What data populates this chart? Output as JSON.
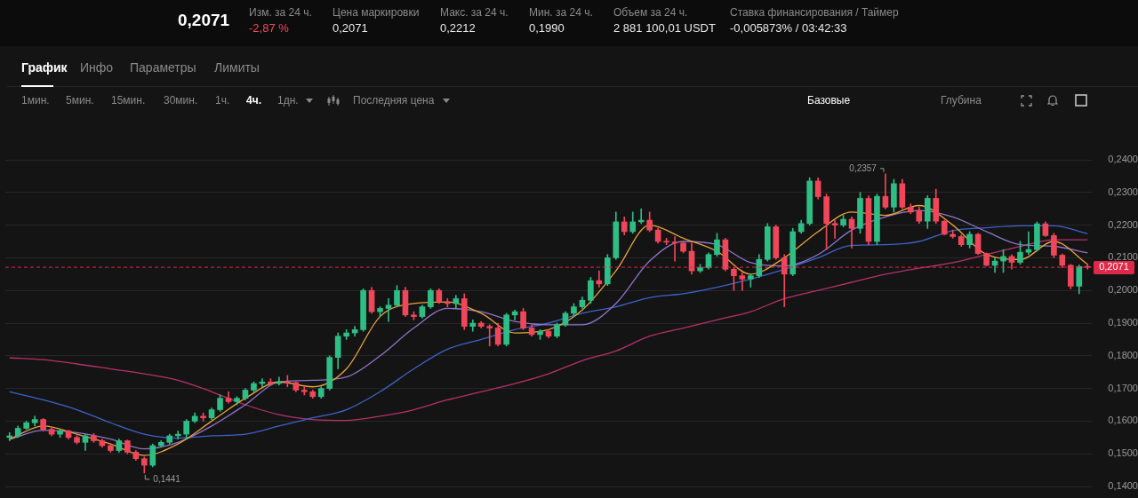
{
  "chart_data": {
    "type": "candlestick",
    "categories": [
      null,
      null,
      null,
      null,
      null,
      null,
      null,
      null,
      null,
      null,
      null,
      null,
      null,
      null,
      null,
      null,
      null,
      null,
      null,
      null,
      null,
      null,
      null,
      null,
      null,
      null,
      null,
      null,
      null,
      null,
      null,
      null,
      null,
      null,
      null,
      null,
      null,
      null,
      null,
      null,
      null,
      null,
      null,
      null,
      null,
      null,
      null,
      null,
      null,
      null,
      null,
      null,
      null,
      null,
      null,
      null,
      null,
      null,
      null,
      null,
      null,
      null,
      null,
      null,
      null,
      null,
      null,
      null,
      null,
      null,
      null,
      null,
      null,
      null,
      null,
      null,
      null,
      null,
      null,
      null,
      null,
      null,
      null,
      null,
      null,
      null,
      null,
      null,
      null,
      null,
      null,
      null,
      null,
      null,
      null,
      null,
      null,
      null,
      null,
      null,
      null,
      null,
      null,
      null,
      null,
      null,
      null,
      null,
      null,
      null,
      null,
      null,
      null,
      null,
      null,
      null,
      null,
      null,
      null,
      null,
      null,
      null,
      null,
      null,
      null,
      null,
      null,
      null,
      null
    ],
    "ohlc": [
      [
        0.155,
        0.1565,
        0.154,
        0.1555
      ],
      [
        0.1555,
        0.1585,
        0.155,
        0.1578
      ],
      [
        0.1578,
        0.16,
        0.1575,
        0.1595
      ],
      [
        0.1595,
        0.1615,
        0.1585,
        0.1605
      ],
      [
        0.1605,
        0.1608,
        0.157,
        0.1575
      ],
      [
        0.1575,
        0.158,
        0.1555,
        0.156
      ],
      [
        0.156,
        0.1575,
        0.155,
        0.157
      ],
      [
        0.157,
        0.1572,
        0.1545,
        0.155
      ],
      [
        0.155,
        0.1555,
        0.153,
        0.1535
      ],
      [
        0.1535,
        0.156,
        0.151,
        0.1555
      ],
      [
        0.1555,
        0.1562,
        0.1535,
        0.154
      ],
      [
        0.154,
        0.1545,
        0.152,
        0.1525
      ],
      [
        0.1525,
        0.153,
        0.1505,
        0.151
      ],
      [
        0.151,
        0.1545,
        0.1505,
        0.154
      ],
      [
        0.154,
        0.1542,
        0.15,
        0.1505
      ],
      [
        0.1505,
        0.151,
        0.148,
        0.1485
      ],
      [
        0.1485,
        0.149,
        0.1441,
        0.1465
      ],
      [
        0.1465,
        0.153,
        0.146,
        0.1525
      ],
      [
        0.1525,
        0.154,
        0.152,
        0.1535
      ],
      [
        0.1535,
        0.156,
        0.153,
        0.1555
      ],
      [
        0.1555,
        0.157,
        0.1545,
        0.156
      ],
      [
        0.156,
        0.1605,
        0.1545,
        0.16
      ],
      [
        0.16,
        0.1625,
        0.1595,
        0.1615
      ],
      [
        0.1615,
        0.1625,
        0.16,
        0.161
      ],
      [
        0.161,
        0.164,
        0.1605,
        0.1635
      ],
      [
        0.1635,
        0.168,
        0.163,
        0.167
      ],
      [
        0.167,
        0.169,
        0.1655,
        0.166
      ],
      [
        0.166,
        0.1675,
        0.165,
        0.167
      ],
      [
        0.167,
        0.17,
        0.1665,
        0.1695
      ],
      [
        0.1695,
        0.172,
        0.169,
        0.1715
      ],
      [
        0.1715,
        0.173,
        0.1705,
        0.172
      ],
      [
        0.172,
        0.173,
        0.171,
        0.1715
      ],
      [
        0.1715,
        0.1735,
        0.171,
        0.172
      ],
      [
        0.172,
        0.174,
        0.1705,
        0.1718
      ],
      [
        0.1718,
        0.172,
        0.169,
        0.1695
      ],
      [
        0.1695,
        0.1705,
        0.168,
        0.169
      ],
      [
        0.169,
        0.1695,
        0.167,
        0.1675
      ],
      [
        0.1675,
        0.1705,
        0.167,
        0.17
      ],
      [
        0.17,
        0.18,
        0.1695,
        0.1795
      ],
      [
        0.1795,
        0.187,
        0.176,
        0.186
      ],
      [
        0.186,
        0.188,
        0.185,
        0.187
      ],
      [
        0.187,
        0.189,
        0.186,
        0.188
      ],
      [
        0.188,
        0.2005,
        0.1875,
        0.2
      ],
      [
        0.2,
        0.201,
        0.193,
        0.1935
      ],
      [
        0.1935,
        0.195,
        0.192,
        0.1945
      ],
      [
        0.1945,
        0.1975,
        0.1905,
        0.1955
      ],
      [
        0.1955,
        0.2015,
        0.195,
        0.2
      ],
      [
        0.2,
        0.201,
        0.192,
        0.1925
      ],
      [
        0.1925,
        0.1935,
        0.191,
        0.192
      ],
      [
        0.192,
        0.1955,
        0.1915,
        0.195
      ],
      [
        0.195,
        0.2005,
        0.1945,
        0.2
      ],
      [
        0.2,
        0.2005,
        0.196,
        0.1965
      ],
      [
        0.1965,
        0.1975,
        0.195,
        0.196
      ],
      [
        0.196,
        0.1985,
        0.1945,
        0.1975
      ],
      [
        0.1975,
        0.199,
        0.188,
        0.189
      ],
      [
        0.189,
        0.191,
        0.1875,
        0.19
      ],
      [
        0.19,
        0.1905,
        0.1885,
        0.189
      ],
      [
        0.189,
        0.1895,
        0.183,
        0.1885
      ],
      [
        0.1885,
        0.19,
        0.183,
        0.1835
      ],
      [
        0.1835,
        0.193,
        0.183,
        0.1925
      ],
      [
        0.1925,
        0.194,
        0.191,
        0.1935
      ],
      [
        0.1935,
        0.1945,
        0.188,
        0.1885
      ],
      [
        0.1885,
        0.1895,
        0.186,
        0.1865
      ],
      [
        0.1865,
        0.188,
        0.185,
        0.1875
      ],
      [
        0.1875,
        0.188,
        0.1855,
        0.186
      ],
      [
        0.186,
        0.19,
        0.1855,
        0.1895
      ],
      [
        0.1895,
        0.1935,
        0.189,
        0.193
      ],
      [
        0.193,
        0.196,
        0.192,
        0.195
      ],
      [
        0.195,
        0.198,
        0.1945,
        0.197
      ],
      [
        0.197,
        0.204,
        0.196,
        0.203
      ],
      [
        0.203,
        0.206,
        0.201,
        0.202
      ],
      [
        0.202,
        0.211,
        0.2015,
        0.21
      ],
      [
        0.21,
        0.224,
        0.2095,
        0.221
      ],
      [
        0.221,
        0.2225,
        0.217,
        0.218
      ],
      [
        0.218,
        0.224,
        0.2175,
        0.221
      ],
      [
        0.221,
        0.225,
        0.2205,
        0.2215
      ],
      [
        0.2215,
        0.224,
        0.218,
        0.2185
      ],
      [
        0.2185,
        0.219,
        0.2145,
        0.215
      ],
      [
        0.215,
        0.216,
        0.214,
        0.2148
      ],
      [
        0.2148,
        0.2165,
        0.209,
        0.2145
      ],
      [
        0.2145,
        0.215,
        0.2115,
        0.212
      ],
      [
        0.212,
        0.2145,
        0.205,
        0.206
      ],
      [
        0.206,
        0.208,
        0.2055,
        0.207
      ],
      [
        0.207,
        0.2115,
        0.2065,
        0.211
      ],
      [
        0.211,
        0.2175,
        0.2105,
        0.2155
      ],
      [
        0.2155,
        0.216,
        0.206,
        0.2065
      ],
      [
        0.2065,
        0.207,
        0.2,
        0.2045
      ],
      [
        0.2045,
        0.2055,
        0.2,
        0.2035
      ],
      [
        0.2035,
        0.205,
        0.201,
        0.2045
      ],
      [
        0.2045,
        0.211,
        0.204,
        0.2095
      ],
      [
        0.2095,
        0.2205,
        0.209,
        0.2195
      ],
      [
        0.2195,
        0.22,
        0.2095,
        0.21
      ],
      [
        0.21,
        0.211,
        0.195,
        0.205
      ],
      [
        0.205,
        0.219,
        0.2045,
        0.218
      ],
      [
        0.218,
        0.2215,
        0.2175,
        0.2205
      ],
      [
        0.2205,
        0.2345,
        0.22,
        0.2335
      ],
      [
        0.2335,
        0.2345,
        0.228,
        0.2287
      ],
      [
        0.2287,
        0.2295,
        0.2125,
        0.2205
      ],
      [
        0.2205,
        0.2215,
        0.216,
        0.22
      ],
      [
        0.22,
        0.223,
        0.2195,
        0.2218
      ],
      [
        0.2218,
        0.2225,
        0.213,
        0.219
      ],
      [
        0.219,
        0.23,
        0.2175,
        0.2282
      ],
      [
        0.2282,
        0.229,
        0.214,
        0.215
      ],
      [
        0.215,
        0.2295,
        0.214,
        0.2288
      ],
      [
        0.2288,
        0.2357,
        0.225,
        0.2255
      ],
      [
        0.2255,
        0.234,
        0.224,
        0.2327
      ],
      [
        0.2327,
        0.234,
        0.225,
        0.2255
      ],
      [
        0.2255,
        0.2265,
        0.2235,
        0.224
      ],
      [
        0.2245,
        0.2255,
        0.2205,
        0.2212
      ],
      [
        0.2212,
        0.229,
        0.219,
        0.2282
      ],
      [
        0.2282,
        0.231,
        0.2205,
        0.2212
      ],
      [
        0.2212,
        0.2215,
        0.217,
        0.2172
      ],
      [
        0.2172,
        0.2185,
        0.216,
        0.2165
      ],
      [
        0.2165,
        0.217,
        0.2135,
        0.214
      ],
      [
        0.214,
        0.218,
        0.213,
        0.2172
      ],
      [
        0.2172,
        0.2175,
        0.211,
        0.2113
      ],
      [
        0.2113,
        0.2115,
        0.2075,
        0.2077
      ],
      [
        0.2077,
        0.21,
        0.2055,
        0.209
      ],
      [
        0.209,
        0.2125,
        0.2055,
        0.2104
      ],
      [
        0.2104,
        0.211,
        0.2065,
        0.2086
      ],
      [
        0.2086,
        0.215,
        0.208,
        0.2117
      ],
      [
        0.2117,
        0.218,
        0.211,
        0.2125
      ],
      [
        0.2125,
        0.221,
        0.212,
        0.2204
      ],
      [
        0.2204,
        0.221,
        0.2165,
        0.2168
      ],
      [
        0.2168,
        0.2175,
        0.21,
        0.2108
      ],
      [
        0.2108,
        0.2112,
        0.207,
        0.2077
      ],
      [
        0.2077,
        0.208,
        0.2005,
        0.2013
      ],
      [
        0.2013,
        0.2078,
        0.199,
        0.2073
      ],
      [
        0.2073,
        0.208,
        0.2065,
        0.2071
      ]
    ],
    "series": [
      {
        "type": "line",
        "color": "#e8a33a",
        "values": [
          0.1545,
          null,
          null,
          null,
          0.1585,
          null,
          null,
          null,
          0.156,
          null,
          null,
          null,
          0.153,
          null,
          null,
          null,
          0.1495,
          null,
          null,
          null,
          0.153,
          null,
          null,
          null,
          0.16,
          null,
          null,
          null,
          0.167,
          null,
          null,
          null,
          0.172,
          null,
          null,
          null,
          0.1705,
          null,
          null,
          null,
          0.176,
          null,
          null,
          null,
          0.192,
          null,
          null,
          null,
          0.196,
          null,
          null,
          null,
          0.1965,
          null,
          null,
          null,
          0.193,
          null,
          null,
          null,
          0.187,
          null,
          null,
          null,
          0.188,
          null,
          null,
          null,
          0.194,
          null,
          null,
          null,
          0.206,
          null,
          null,
          null,
          0.22,
          null,
          null,
          null,
          0.216,
          null,
          null,
          null,
          0.212,
          null,
          null,
          null,
          0.205,
          null,
          null,
          null,
          0.21,
          null,
          null,
          null,
          0.218,
          null,
          null,
          null,
          0.224,
          null,
          null,
          null,
          0.223,
          null,
          null,
          null,
          0.226,
          null,
          null,
          null,
          0.22,
          null,
          null,
          null,
          0.211,
          null,
          null,
          null,
          0.2095,
          null,
          null,
          null,
          0.215,
          null,
          null,
          null,
          0.208
        ]
      },
      {
        "type": "line",
        "color": "#8f73c9",
        "values": [
          0.1544,
          null,
          null,
          null,
          0.1572,
          null,
          null,
          null,
          0.1565,
          null,
          null,
          null,
          0.1545,
          null,
          null,
          null,
          0.1515,
          null,
          null,
          null,
          0.1535,
          null,
          null,
          null,
          0.1585,
          null,
          null,
          null,
          0.165,
          null,
          null,
          null,
          0.172,
          null,
          null,
          null,
          0.1725,
          null,
          null,
          null,
          0.1735,
          null,
          null,
          null,
          0.18,
          null,
          null,
          null,
          0.1885,
          null,
          null,
          null,
          0.1945,
          null,
          null,
          null,
          0.1935,
          null,
          null,
          null,
          0.1905,
          null,
          null,
          null,
          0.1895,
          null,
          null,
          null,
          0.1895,
          null,
          null,
          null,
          0.196,
          null,
          null,
          null,
          0.209,
          null,
          null,
          null,
          0.215,
          null,
          null,
          null,
          0.214,
          null,
          null,
          null,
          0.2085,
          null,
          null,
          null,
          0.2075,
          null,
          null,
          null,
          0.211,
          null,
          null,
          null,
          0.2185,
          null,
          null,
          null,
          0.2225,
          null,
          null,
          null,
          0.2245,
          null,
          null,
          null,
          0.2225,
          null,
          null,
          null,
          0.218,
          null,
          null,
          null,
          0.214,
          null,
          null,
          null,
          0.2135,
          null,
          null,
          null,
          0.2115
        ]
      },
      {
        "type": "line",
        "color": "#3d63c9",
        "values": [
          0.169,
          null,
          null,
          null,
          0.1665,
          null,
          null,
          null,
          0.1635,
          null,
          null,
          null,
          0.1595,
          null,
          null,
          null,
          0.156,
          null,
          null,
          null,
          0.1548,
          null,
          null,
          null,
          0.1555,
          null,
          null,
          null,
          0.156,
          null,
          null,
          null,
          0.1585,
          null,
          null,
          null,
          0.161,
          null,
          null,
          null,
          0.1635,
          null,
          null,
          null,
          0.169,
          null,
          null,
          null,
          0.176,
          null,
          null,
          null,
          0.182,
          null,
          null,
          null,
          0.185,
          null,
          null,
          null,
          0.188,
          null,
          null,
          null,
          0.19,
          null,
          null,
          null,
          0.193,
          null,
          null,
          null,
          0.195,
          null,
          null,
          null,
          0.1978,
          null,
          null,
          null,
          0.199,
          null,
          null,
          null,
          0.201,
          null,
          null,
          null,
          0.2035,
          null,
          null,
          null,
          0.2065,
          null,
          null,
          null,
          0.21,
          null,
          null,
          null,
          0.2138,
          null,
          null,
          null,
          0.214,
          null,
          null,
          null,
          0.215,
          null,
          null,
          null,
          0.2183,
          null,
          null,
          null,
          0.2192,
          null,
          null,
          null,
          0.2198,
          null,
          null,
          null,
          0.2198,
          null,
          null,
          null,
          0.2174
        ]
      },
      {
        "type": "line",
        "color": "#b8306a",
        "values": [
          0.1794,
          null,
          null,
          null,
          0.1788,
          null,
          null,
          null,
          0.1775,
          null,
          null,
          null,
          0.176,
          null,
          null,
          null,
          0.1745,
          null,
          null,
          null,
          0.1725,
          null,
          null,
          null,
          0.169,
          null,
          null,
          null,
          0.165,
          null,
          null,
          null,
          0.162,
          null,
          null,
          null,
          0.1605,
          null,
          null,
          null,
          0.1602,
          null,
          null,
          null,
          0.1615,
          null,
          null,
          null,
          0.1635,
          null,
          null,
          null,
          0.1665,
          null,
          null,
          null,
          0.169,
          null,
          null,
          null,
          0.1715,
          null,
          null,
          null,
          0.1745,
          null,
          null,
          null,
          0.1785,
          null,
          null,
          null,
          0.1815,
          null,
          null,
          null,
          0.186,
          null,
          null,
          null,
          0.1885,
          null,
          null,
          null,
          0.191,
          null,
          null,
          null,
          0.1935,
          null,
          null,
          null,
          0.1975,
          null,
          null,
          null,
          0.2,
          null,
          null,
          null,
          0.2025,
          null,
          null,
          null,
          0.205,
          null,
          null,
          null,
          0.2068,
          null,
          null,
          null,
          0.2085,
          null,
          null,
          null,
          0.211,
          null,
          null,
          null,
          0.2135,
          null,
          null,
          null,
          0.2155,
          null,
          null,
          null,
          0.2155
        ]
      }
    ],
    "ylim": [
      0.14,
      0.24
    ],
    "yticks": [
      {
        "value": 0.14,
        "label": "0,1400"
      },
      {
        "value": 0.15,
        "label": "0,1500"
      },
      {
        "value": 0.16,
        "label": "0,1600"
      },
      {
        "value": 0.17,
        "label": "0,1700"
      },
      {
        "value": 0.18,
        "label": "0,1800"
      },
      {
        "value": 0.19,
        "label": "0,1900"
      },
      {
        "value": 0.2,
        "label": "0,2000"
      },
      {
        "value": 0.21,
        "label": "0,2100"
      },
      {
        "value": 0.22,
        "label": "0,2200"
      },
      {
        "value": 0.23,
        "label": "0,2300"
      },
      {
        "value": 0.24,
        "label": "0,2400"
      }
    ],
    "grid": "y",
    "ref_lines": [
      {
        "axis": "y",
        "value": 0.2071,
        "label": "0,2071",
        "color": "#e0294a",
        "line_style": "dashed"
      }
    ],
    "annotations": [
      "0,2071",
      "Изм. за 24 ч.",
      "-2,87 %",
      "Цена маркировки",
      "0,2071",
      "Макс. за 24 ч.",
      "0,2212",
      "Мин. за 24 ч.",
      "0,1990",
      "Объем за 24 ч.",
      "2 881 100,01 USDT",
      "Ставка финансирования / Таймер",
      "-0,005873% / 03:42:33",
      "График",
      "Инфо",
      "Параметры",
      "Лимиты",
      "1мин.",
      "5мин.",
      "15мин.",
      "30мин.",
      "1ч.",
      "4ч.",
      "1дн.",
      "Последняя цена",
      "Базовые",
      "Глубина",
      "0,2357",
      "0,1441"
    ]
  }
}
